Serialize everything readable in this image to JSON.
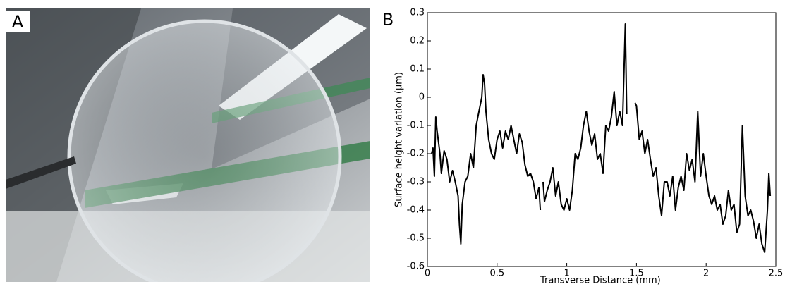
{
  "panel_a": {
    "label": "A"
  },
  "chart_data": {
    "type": "line",
    "panel_label": "B",
    "xlabel": "Transverse Distance (mm)",
    "ylabel": "Surface height variation (μm)",
    "color": "#000000",
    "xlim": [
      0,
      2.5
    ],
    "ylim": [
      -0.6,
      0.3
    ],
    "xticks": [
      0,
      0.5,
      1,
      1.5,
      2,
      2.5
    ],
    "yticks": [
      0.3,
      0.2,
      0.1,
      0,
      -0.1,
      -0.2,
      -0.3,
      -0.4,
      -0.5,
      -0.6
    ],
    "x": [
      0.03,
      0.04,
      0.05,
      0.06,
      0.07,
      0.09,
      0.1,
      0.12,
      0.14,
      0.16,
      0.18,
      0.2,
      0.22,
      0.23,
      0.24,
      0.25,
      0.27,
      0.29,
      0.31,
      0.33,
      0.35,
      0.37,
      0.39,
      0.4,
      0.41,
      0.42,
      0.44,
      0.46,
      0.48,
      0.5,
      0.52,
      0.54,
      0.56,
      0.58,
      0.6,
      0.62,
      0.64,
      0.66,
      0.68,
      0.7,
      0.72,
      0.74,
      0.76,
      0.78,
      0.8,
      0.81,
      0.82,
      0.83,
      0.84,
      0.86,
      0.88,
      0.9,
      0.92,
      0.94,
      0.96,
      0.98,
      1.0,
      1.02,
      1.04,
      1.06,
      1.08,
      1.1,
      1.12,
      1.14,
      1.16,
      1.18,
      1.2,
      1.22,
      1.24,
      1.26,
      1.28,
      1.3,
      1.32,
      1.34,
      1.36,
      1.38,
      1.4,
      1.42,
      1.43,
      1.46,
      1.49,
      1.5,
      1.52,
      1.54,
      1.56,
      1.58,
      1.6,
      1.62,
      1.64,
      1.66,
      1.68,
      1.7,
      1.72,
      1.74,
      1.76,
      1.78,
      1.8,
      1.82,
      1.84,
      1.86,
      1.88,
      1.9,
      1.92,
      1.94,
      1.96,
      1.98,
      2.0,
      2.02,
      2.04,
      2.06,
      2.08,
      2.1,
      2.12,
      2.14,
      2.16,
      2.18,
      2.2,
      2.22,
      2.24,
      2.26,
      2.28,
      2.3,
      2.32,
      2.34,
      2.36,
      2.38,
      2.4,
      2.42,
      2.44,
      2.45,
      2.46
    ],
    "values": [
      -0.2,
      -0.18,
      -0.28,
      -0.07,
      -0.12,
      -0.2,
      -0.27,
      -0.19,
      -0.22,
      -0.3,
      -0.26,
      -0.3,
      -0.35,
      -0.45,
      -0.52,
      -0.38,
      -0.3,
      -0.28,
      -0.2,
      -0.25,
      -0.1,
      -0.05,
      0.0,
      0.08,
      0.05,
      -0.05,
      -0.15,
      -0.2,
      -0.22,
      -0.15,
      -0.12,
      -0.18,
      -0.12,
      -0.15,
      -0.1,
      -0.15,
      -0.2,
      -0.13,
      -0.16,
      -0.24,
      -0.28,
      -0.27,
      -0.3,
      -0.36,
      -0.32,
      -0.4,
      null,
      -0.3,
      -0.37,
      -0.33,
      -0.3,
      -0.25,
      -0.35,
      -0.3,
      -0.38,
      -0.4,
      -0.36,
      -0.4,
      -0.33,
      -0.2,
      -0.22,
      -0.18,
      -0.1,
      -0.05,
      -0.12,
      -0.17,
      -0.13,
      -0.22,
      -0.2,
      -0.27,
      -0.1,
      -0.12,
      -0.07,
      0.02,
      -0.1,
      -0.05,
      -0.1,
      0.26,
      -0.06,
      null,
      -0.02,
      -0.03,
      -0.15,
      -0.12,
      -0.2,
      -0.15,
      -0.22,
      -0.28,
      -0.25,
      -0.35,
      -0.42,
      -0.3,
      -0.3,
      -0.35,
      -0.28,
      -0.4,
      -0.32,
      -0.28,
      -0.33,
      -0.2,
      -0.26,
      -0.22,
      -0.3,
      -0.05,
      -0.28,
      -0.2,
      -0.28,
      -0.35,
      -0.38,
      -0.35,
      -0.4,
      -0.38,
      -0.45,
      -0.42,
      -0.33,
      -0.4,
      -0.38,
      -0.48,
      -0.45,
      -0.1,
      -0.35,
      -0.42,
      -0.4,
      -0.44,
      -0.5,
      -0.45,
      -0.52,
      -0.55,
      -0.4,
      -0.27,
      -0.35
    ]
  }
}
